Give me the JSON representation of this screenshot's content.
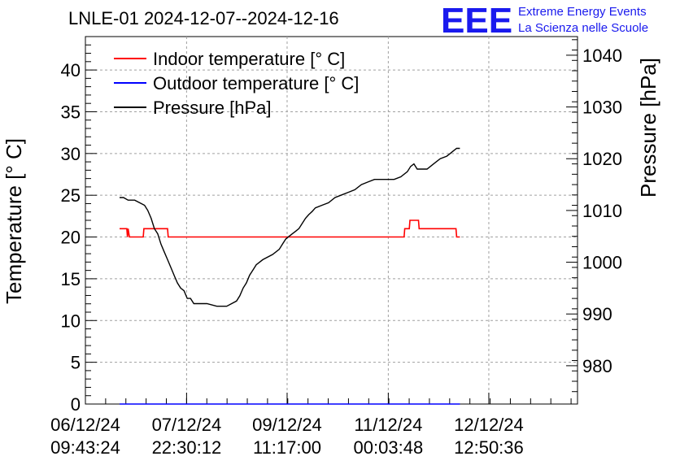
{
  "chart_data": {
    "type": "line",
    "title": "LNLE-01 2024-12-07--2024-12-16",
    "ylabel": "Temperature [° C]",
    "y2label": "Pressure [hPa]",
    "ylim": [
      0,
      44
    ],
    "y2lim": [
      972.6,
      1043.6
    ],
    "yticks": [
      0,
      5,
      10,
      15,
      20,
      25,
      30,
      35,
      40
    ],
    "y2ticks": [
      980,
      990,
      1000,
      1010,
      1020,
      1030,
      1040
    ],
    "xlim": [
      0,
      7.49
    ],
    "xticks": [
      {
        "x": 0,
        "line1": "06/12/24",
        "line2": "09:43:24"
      },
      {
        "x": 1.54,
        "line1": "07/12/24",
        "line2": "22:30:12"
      },
      {
        "x": 3.07,
        "line1": "09/12/24",
        "line2": "11:17:00"
      },
      {
        "x": 4.61,
        "line1": "11/12/24",
        "line2": "00:03:48"
      },
      {
        "x": 6.14,
        "line1": "12/12/24",
        "line2": "12:50:36"
      }
    ],
    "grid": true,
    "legend_position": "top-left",
    "series": [
      {
        "name": "Indoor temperature [° C]",
        "color": "#ff0000",
        "axis": "left",
        "x": [
          0.52,
          0.63,
          0.64,
          0.65,
          0.67,
          0.68,
          0.69,
          0.88,
          0.89,
          1.25,
          1.26,
          4.85,
          4.86,
          4.93,
          4.94,
          5.07,
          5.08,
          5.18,
          5.19,
          5.64,
          5.65,
          5.7
        ],
        "y": [
          21,
          21,
          20,
          21,
          20,
          20,
          20,
          20,
          21,
          21,
          20,
          20,
          21,
          21,
          22,
          22,
          21,
          21,
          21,
          21,
          20,
          20
        ]
      },
      {
        "name": "Outdoor temperature [° C]",
        "color": "#0000ff",
        "axis": "left",
        "x": [
          0.52,
          5.7
        ],
        "y": [
          0,
          0
        ]
      },
      {
        "name": "Pressure [hPa]",
        "color": "#000000",
        "axis": "right",
        "x": [
          0.52,
          0.58,
          0.65,
          0.75,
          0.9,
          0.95,
          1.0,
          1.05,
          1.1,
          1.15,
          1.2,
          1.25,
          1.3,
          1.35,
          1.4,
          1.45,
          1.5,
          1.55,
          1.6,
          1.65,
          1.7,
          1.78,
          1.85,
          2.0,
          2.15,
          2.3,
          2.35,
          2.4,
          2.45,
          2.5,
          2.55,
          2.6,
          2.7,
          2.85,
          2.95,
          3.0,
          3.05,
          3.1,
          3.15,
          3.2,
          3.25,
          3.3,
          3.35,
          3.4,
          3.45,
          3.5,
          3.6,
          3.7,
          3.8,
          3.9,
          4.0,
          4.1,
          4.2,
          4.3,
          4.4,
          4.5,
          4.6,
          4.7,
          4.8,
          4.9,
          4.95,
          5.0,
          5.05,
          5.1,
          5.2,
          5.3,
          5.4,
          5.5,
          5.55,
          5.6,
          5.65,
          5.7
        ],
        "y": [
          1012.5,
          1012.5,
          1012,
          1012,
          1011,
          1010,
          1008.5,
          1006.5,
          1005.5,
          1003.5,
          1002,
          1000.5,
          999,
          997.5,
          996,
          995,
          994.5,
          993,
          993,
          992,
          992,
          992,
          992,
          991.5,
          991.5,
          992.5,
          993.5,
          995,
          996,
          997.5,
          998.5,
          999.5,
          1000.5,
          1001.5,
          1002.5,
          1003.5,
          1004.5,
          1005,
          1005.5,
          1006,
          1006.5,
          1007.5,
          1008.5,
          1009.2,
          1009.8,
          1010.5,
          1011,
          1011.5,
          1012.5,
          1013,
          1013.5,
          1014,
          1015,
          1015.5,
          1016,
          1016,
          1016,
          1016,
          1016.5,
          1017.5,
          1018.5,
          1019,
          1018,
          1018,
          1018,
          1019,
          1020,
          1020.5,
          1021,
          1021.5,
          1022,
          1022
        ]
      }
    ]
  },
  "logo": {
    "text": "EEE",
    "line1": "Extreme Energy Events",
    "line2": "La Scienza nelle Scuole",
    "color": "#1a1aee"
  }
}
